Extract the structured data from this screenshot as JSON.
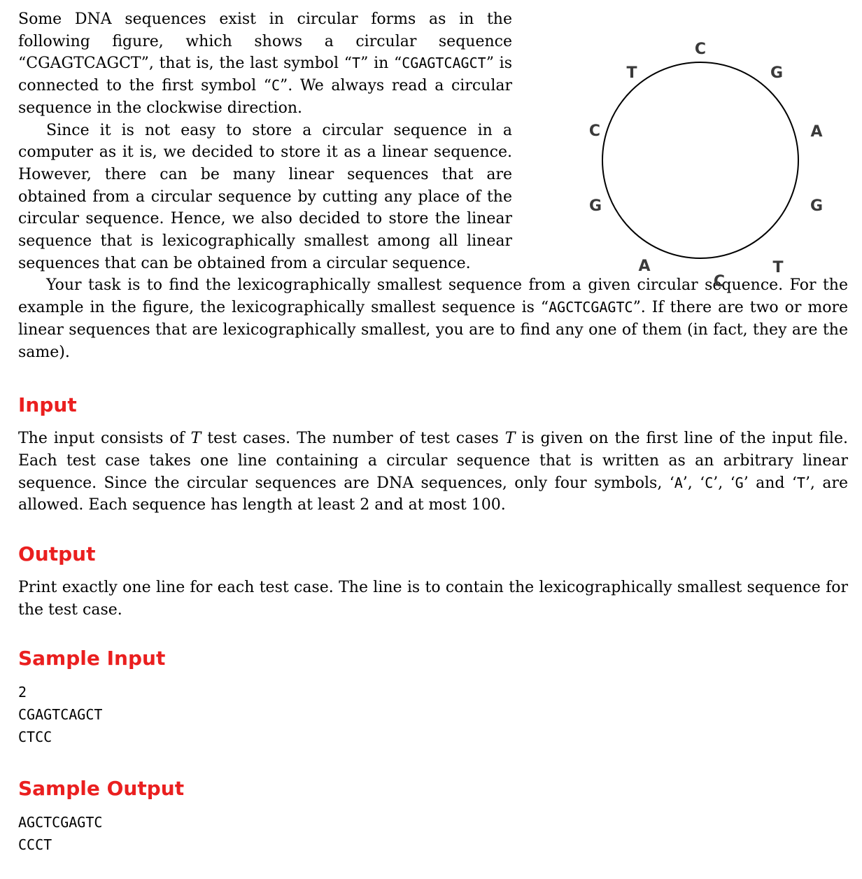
{
  "intro": {
    "p1_a": "Some DNA sequences exist in circular forms as in the following figure, which shows a circular sequence “",
    "p1_seq": "CGAGTCAGCT",
    "p1_b": "”, that is, the last symbol “",
    "p1_t": "T",
    "p1_c": "” in “",
    "p1_seq2": "CGAGTCAGCT",
    "p1_d": "” is connected to the first symbol “",
    "p1_cc": "C",
    "p1_e": "”. We always read a circular sequence in the clockwise direction.",
    "p2": "Since it is not easy to store a circular sequence in a computer as it is, we decided to store it as a linear sequence. However, there can be many linear sequences that are obtained from a circular sequence by cutting any place of the circular sequence. Hence, we also decided to store the linear sequence that is lexicographically smallest among all linear sequences that can be obtained from a circular sequence.",
    "p3_a": "Your task is to find the lexicographically smallest sequence from a given circular sequence. For the example in the figure, the lexicographically smallest sequence is “",
    "p3_seq": "AGCTCGAGTC",
    "p3_b": "”. If there are two or more linear sequences that are lexicographically smallest, you are to find any one of them (in fact, they are the same)."
  },
  "figure": {
    "letters": [
      "C",
      "G",
      "A",
      "G",
      "T",
      "C",
      "A",
      "G",
      "C",
      "T"
    ]
  },
  "input_section": {
    "title": "Input",
    "t1": "The input consists of ",
    "var1": "T",
    "t2": " test cases. The number of test cases ",
    "var2": "T",
    "t3": " is given on the first line of the input file. Each test case takes one line containing a circular sequence that is written as an arbitrary linear sequence. Since the circular sequences are DNA sequences, only four symbols, ‘",
    "s1": "A",
    "t4": "’, ‘",
    "s2": "C",
    "t5": "’, ‘",
    "s3": "G",
    "t6": "’ and ‘",
    "s4": "T",
    "t7": "’, are allowed. Each sequence has length at least 2 and at most 100."
  },
  "output_section": {
    "title": "Output",
    "text": "Print exactly one line for each test case. The line is to contain the lexicographically smallest sequence for the test case."
  },
  "sample_input": {
    "title": "Sample Input",
    "lines": [
      "2",
      "CGAGTCAGCT",
      "CTCC"
    ]
  },
  "sample_output": {
    "title": "Sample Output",
    "lines": [
      "AGCTCGAGTC",
      "CCCT"
    ]
  }
}
